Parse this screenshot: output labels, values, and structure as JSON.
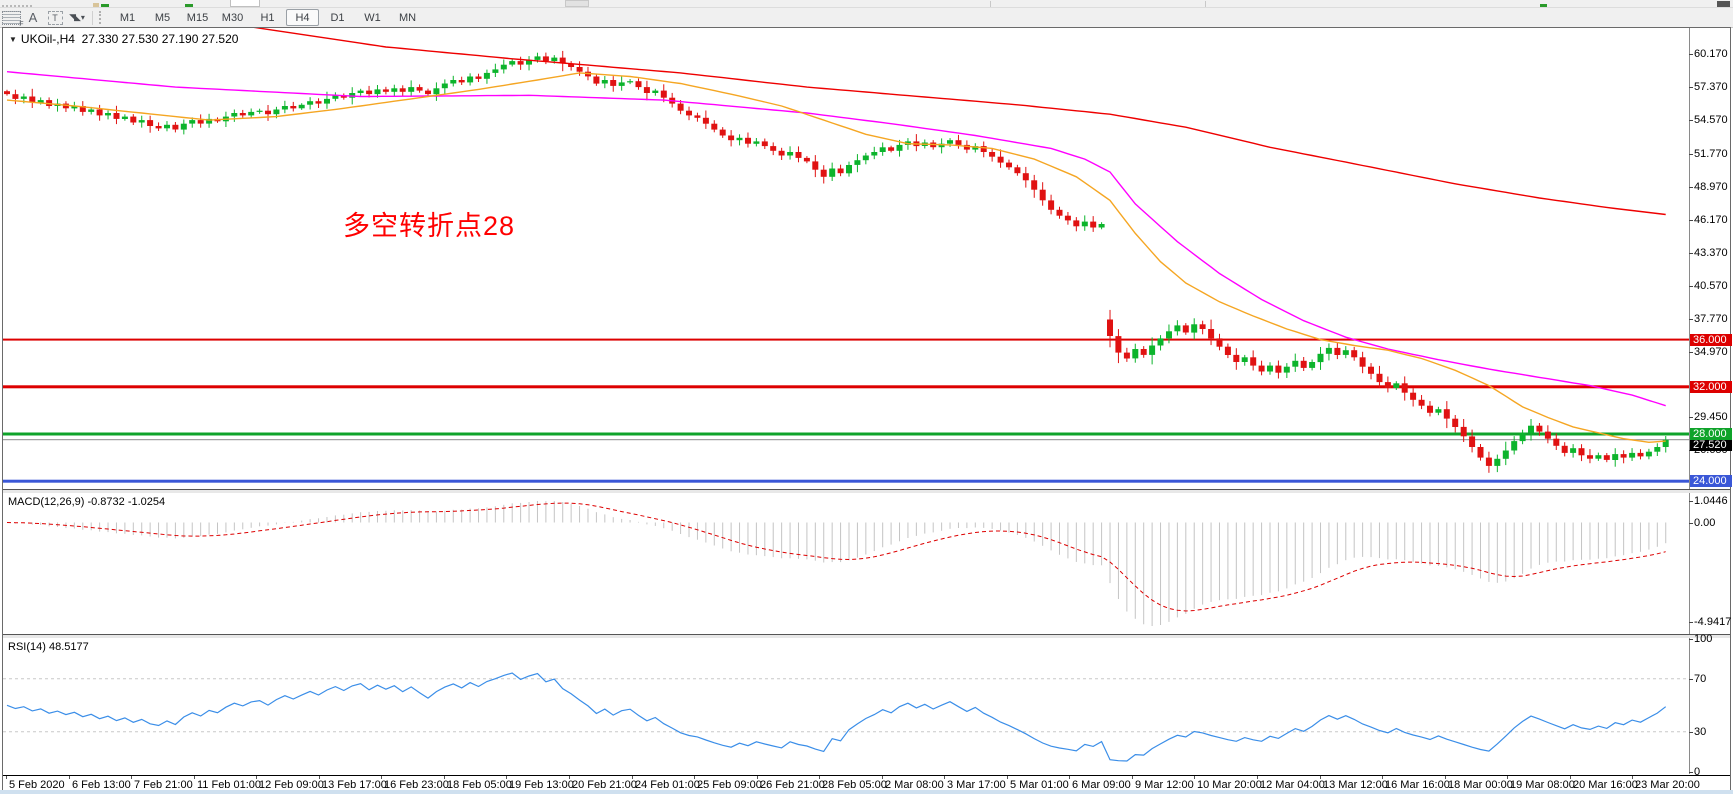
{
  "top_toolbar": {
    "icons": {
      "lines_grid": "",
      "text_glyph": "A",
      "text_label_glyph": "T",
      "arrows_glyph": "◥◣",
      "caret_glyph": "▾"
    },
    "timeframes": [
      "M1",
      "M5",
      "M15",
      "M30",
      "H1",
      "H4",
      "D1",
      "W1",
      "MN"
    ],
    "active_timeframe": "H4"
  },
  "chart": {
    "dropdown_glyph": "▼",
    "symbol": "UKOil-,H4",
    "ohlc": {
      "open": "27.330",
      "high": "27.530",
      "low": "27.190",
      "close": "27.520"
    },
    "annotation_text": "多空转折点28",
    "annotation_color": "#ff0000",
    "price_axis": [
      {
        "v": 60.17,
        "t": "60.170"
      },
      {
        "v": 57.37,
        "t": "57.370"
      },
      {
        "v": 54.57,
        "t": "54.570"
      },
      {
        "v": 51.77,
        "t": "51.770"
      },
      {
        "v": 48.97,
        "t": "48.970"
      },
      {
        "v": 46.17,
        "t": "46.170"
      },
      {
        "v": 43.37,
        "t": "43.370"
      },
      {
        "v": 40.57,
        "t": "40.570"
      },
      {
        "v": 37.77,
        "t": "37.770"
      },
      {
        "v": 34.97,
        "t": "34.970"
      },
      {
        "v": 29.45,
        "t": "29.450"
      },
      {
        "v": 26.65,
        "t": "26.650"
      }
    ],
    "levels": [
      {
        "v": 36.0,
        "t": "36.000",
        "color": "#dd0000",
        "thick": 2
      },
      {
        "v": 32.0,
        "t": "32.000",
        "color": "#dd0000",
        "thick": 3
      },
      {
        "v": 28.0,
        "t": "28.000",
        "color": "#0fa32a",
        "thick": 3
      },
      {
        "v": 24.0,
        "t": "24.000",
        "color": "#3a57d7",
        "thick": 3
      }
    ],
    "current_price": {
      "v": 27.52,
      "t": "27.520",
      "line_color": "#8a8a8a",
      "tag_color": "#000000"
    }
  },
  "macd": {
    "label": "MACD(12,26,9) -0.8732 -1.0254",
    "fast": 12,
    "slow": 26,
    "signal": 9,
    "axis_top": "1.0446",
    "axis_zero": "0.00",
    "axis_bottom": "-4.9417",
    "hist_color": "#c4c4c4",
    "signal_color": "#dd0000"
  },
  "rsi": {
    "label": "RSI(14) 48.5177",
    "period": 14,
    "last_value": 48.5177,
    "axis": [
      {
        "v": 100,
        "t": "100"
      },
      {
        "v": 70,
        "t": "70"
      },
      {
        "v": 30,
        "t": "30"
      },
      {
        "v": 0,
        "t": "0"
      }
    ],
    "levels": [
      70,
      30
    ],
    "line_color": "#3b8ee8"
  },
  "date_axis": [
    "5 Feb 2020",
    "6 Feb 13:00",
    "7 Feb 21:00",
    "11 Feb 01:00",
    "12 Feb 09:00",
    "13 Feb 17:00",
    "16 Feb 23:00",
    "18 Feb 05:00",
    "19 Feb 13:00",
    "20 Feb 21:00",
    "24 Feb 01:00",
    "25 Feb 09:00",
    "26 Feb 21:00",
    "28 Feb 05:00",
    "2 Mar 08:00",
    "3 Mar 17:00",
    "5 Mar 01:00",
    "6 Mar 09:00",
    "9 Mar 12:00",
    "10 Mar 20:00",
    "12 Mar 04:00",
    "13 Mar 12:00",
    "16 Mar 16:00",
    "18 Mar 00:00",
    "19 Mar 08:00",
    "20 Mar 16:00",
    "23 Mar 20:00"
  ],
  "chart_data": {
    "type": "candlestick",
    "title": "UKOil- H4",
    "up_color": "#0cb42c",
    "down_color": "#e01212",
    "y_axis_ticks": [
      60.17,
      57.37,
      54.57,
      51.77,
      48.97,
      46.17,
      43.37,
      40.57,
      37.77,
      34.97,
      29.45,
      26.65
    ],
    "closes": [
      56.8,
      56.4,
      56.6,
      56.1,
      56.3,
      55.8,
      56.0,
      55.6,
      55.8,
      55.3,
      55.5,
      55.0,
      55.2,
      54.7,
      54.9,
      54.4,
      54.6,
      54.1,
      53.9,
      54.2,
      53.8,
      54.3,
      54.6,
      54.3,
      54.7,
      54.5,
      54.9,
      55.2,
      55.0,
      55.3,
      55.4,
      55.1,
      55.5,
      55.8,
      55.6,
      55.9,
      56.2,
      56.0,
      56.4,
      56.7,
      56.5,
      56.9,
      57.1,
      56.8,
      57.2,
      57.0,
      57.3,
      57.0,
      57.4,
      57.1,
      56.8,
      57.3,
      57.7,
      58.0,
      57.8,
      58.3,
      58.1,
      58.6,
      58.9,
      59.3,
      59.6,
      59.3,
      59.7,
      60.0,
      59.6,
      59.9,
      59.4,
      59.1,
      58.7,
      58.3,
      57.7,
      58.0,
      57.5,
      57.8,
      57.9,
      57.4,
      56.9,
      57.1,
      56.5,
      56.0,
      55.4,
      55.0,
      54.8,
      54.3,
      53.8,
      53.3,
      52.9,
      53.1,
      52.6,
      52.8,
      52.4,
      52.0,
      51.6,
      51.9,
      51.4,
      51.1,
      50.4,
      49.8,
      50.5,
      50.1,
      50.8,
      51.2,
      51.6,
      51.9,
      52.3,
      52.0,
      52.5,
      52.8,
      52.4,
      52.7,
      52.3,
      52.6,
      52.9,
      52.5,
      52.1,
      52.4,
      51.9,
      51.5,
      51.0,
      50.6,
      50.1,
      49.5,
      48.7,
      47.8,
      47.0,
      46.5,
      46.1,
      45.6,
      46.0,
      45.5,
      45.8,
      36.3,
      34.9,
      34.4,
      35.2,
      34.7,
      35.5,
      36.1,
      36.7,
      37.2,
      36.6,
      37.3,
      36.9,
      36.1,
      35.4,
      34.7,
      34.1,
      34.5,
      33.8,
      33.3,
      33.8,
      33.2,
      33.7,
      34.2,
      33.6,
      34.1,
      34.8,
      35.3,
      34.7,
      35.1,
      34.5,
      33.7,
      33.1,
      32.4,
      31.9,
      32.3,
      31.5,
      30.9,
      30.4,
      29.8,
      30.1,
      29.3,
      28.6,
      27.8,
      26.9,
      26.0,
      25.3,
      25.9,
      26.6,
      27.4,
      28.1,
      28.7,
      28.2,
      27.6,
      27.0,
      26.4,
      26.8,
      26.2,
      25.9,
      26.2,
      25.8,
      26.3,
      26.0,
      26.4,
      26.1,
      26.5,
      26.9,
      27.52
    ],
    "moving_averages": [
      {
        "name": "ma-slow",
        "color": "#ee0000",
        "anchors": [
          [
            29,
            62.5
          ],
          [
            45,
            60.8
          ],
          [
            60,
            59.8
          ],
          [
            80,
            58.6
          ],
          [
            95,
            57.4
          ],
          [
            110,
            56.5
          ],
          [
            120,
            55.9
          ],
          [
            131,
            55.1
          ],
          [
            140,
            54.0
          ],
          [
            150,
            52.3
          ],
          [
            160,
            50.9
          ],
          [
            172,
            49.2
          ],
          [
            182,
            48.0
          ],
          [
            190,
            47.2
          ],
          [
            197,
            46.6
          ]
        ]
      },
      {
        "name": "ma-mid",
        "color": "#ff00ff",
        "anchors": [
          [
            0,
            58.7
          ],
          [
            20,
            57.4
          ],
          [
            42,
            56.6
          ],
          [
            62,
            56.7
          ],
          [
            78,
            56.3
          ],
          [
            95,
            55.2
          ],
          [
            105,
            54.3
          ],
          [
            115,
            53.3
          ],
          [
            124,
            52.2
          ],
          [
            128,
            51.3
          ],
          [
            131,
            50.2
          ],
          [
            134,
            47.5
          ],
          [
            139,
            44.3
          ],
          [
            144,
            41.6
          ],
          [
            149,
            39.4
          ],
          [
            154,
            37.6
          ],
          [
            159,
            36.2
          ],
          [
            164,
            35.2
          ],
          [
            170,
            34.3
          ],
          [
            176,
            33.5
          ],
          [
            182,
            32.8
          ],
          [
            188,
            32.1
          ],
          [
            193,
            31.3
          ],
          [
            197,
            30.4
          ]
        ]
      },
      {
        "name": "ma-fast",
        "color": "#f5a623",
        "anchors": [
          [
            0,
            56.3
          ],
          [
            8,
            55.8
          ],
          [
            16,
            55.2
          ],
          [
            24,
            54.6
          ],
          [
            32,
            54.9
          ],
          [
            40,
            55.6
          ],
          [
            48,
            56.4
          ],
          [
            56,
            57.2
          ],
          [
            63,
            58.0
          ],
          [
            68,
            58.6
          ],
          [
            74,
            58.3
          ],
          [
            80,
            57.7
          ],
          [
            86,
            56.8
          ],
          [
            92,
            55.8
          ],
          [
            97,
            54.6
          ],
          [
            102,
            53.4
          ],
          [
            107,
            52.6
          ],
          [
            112,
            52.5
          ],
          [
            117,
            52.2
          ],
          [
            122,
            51.3
          ],
          [
            127,
            49.8
          ],
          [
            131,
            47.8
          ],
          [
            134,
            45.0
          ],
          [
            137,
            42.6
          ],
          [
            140,
            40.8
          ],
          [
            144,
            39.2
          ],
          [
            148,
            38.0
          ],
          [
            152,
            36.9
          ],
          [
            156,
            36.0
          ],
          [
            160,
            35.5
          ],
          [
            164,
            35.1
          ],
          [
            168,
            34.4
          ],
          [
            172,
            33.4
          ],
          [
            176,
            32.1
          ],
          [
            180,
            30.3
          ],
          [
            183,
            29.4
          ],
          [
            186,
            28.6
          ],
          [
            189,
            28.1
          ],
          [
            192,
            27.6
          ],
          [
            195,
            27.3
          ],
          [
            197,
            27.4
          ]
        ]
      }
    ]
  }
}
